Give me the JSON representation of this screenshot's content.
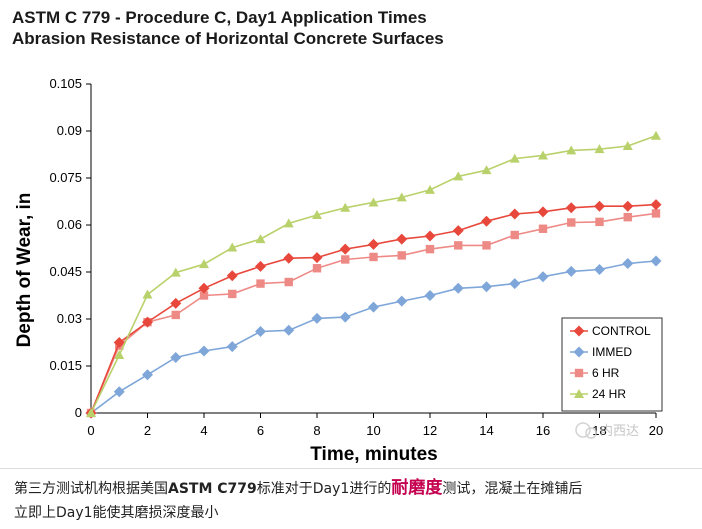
{
  "chart_data": {
    "type": "line",
    "title_lines": [
      "ASTM C 779 - Procedure C, Day1 Application Times",
      "Abrasion Resistance of Horizontal Concrete Surfaces"
    ],
    "xlabel": "Time, minutes",
    "ylabel": "Depth of Wear, in",
    "xlim": [
      0,
      20
    ],
    "ylim": [
      0,
      0.105
    ],
    "xticks": [
      0,
      2,
      4,
      6,
      8,
      10,
      12,
      14,
      16,
      18,
      20
    ],
    "xtick_labels": [
      "0",
      "2",
      "4",
      "6",
      "8",
      "10",
      "12",
      "14",
      "16",
      "18",
      "20"
    ],
    "yticks": [
      0,
      0.015,
      0.03,
      0.045,
      0.06,
      0.075,
      0.09,
      0.105
    ],
    "ytick_labels": [
      "0",
      "0.015",
      "0.03",
      "0.045",
      "0.06",
      "0.075",
      "0.09",
      "0.105"
    ],
    "x": [
      0,
      1,
      2,
      3,
      4,
      5,
      6,
      7,
      8,
      9,
      10,
      11,
      12,
      13,
      14,
      15,
      16,
      17,
      18,
      19,
      20
    ],
    "series": [
      {
        "name": "CONTROL",
        "color": "#e8483c",
        "marker": "diamond",
        "values": [
          0,
          0.0225,
          0.029,
          0.035,
          0.0398,
          0.0438,
          0.0468,
          0.0494,
          0.0496,
          0.0523,
          0.0538,
          0.0555,
          0.0565,
          0.0582,
          0.0612,
          0.0635,
          0.0642,
          0.0655,
          0.066,
          0.066,
          0.0665
        ]
      },
      {
        "name": "IMMED",
        "color": "#7ea6d9",
        "marker": "diamond",
        "values": [
          0,
          0.0068,
          0.0122,
          0.0177,
          0.0198,
          0.0212,
          0.026,
          0.0264,
          0.0302,
          0.0306,
          0.0338,
          0.0357,
          0.0375,
          0.0398,
          0.0403,
          0.0413,
          0.0435,
          0.0452,
          0.0458,
          0.0477,
          0.0485
        ]
      },
      {
        "name": "6 HR",
        "color": "#ee8a86",
        "marker": "square",
        "values": [
          0,
          0.0215,
          0.029,
          0.0313,
          0.0375,
          0.038,
          0.0413,
          0.0418,
          0.0462,
          0.049,
          0.0498,
          0.0503,
          0.0523,
          0.0535,
          0.0535,
          0.0568,
          0.0588,
          0.0608,
          0.061,
          0.0625,
          0.0637
        ]
      },
      {
        "name": "24 HR",
        "color": "#b9d16a",
        "marker": "triangle",
        "values": [
          0,
          0.0185,
          0.0378,
          0.0448,
          0.0475,
          0.0528,
          0.0555,
          0.0605,
          0.0632,
          0.0655,
          0.0672,
          0.0688,
          0.0712,
          0.0755,
          0.0775,
          0.0812,
          0.0822,
          0.0838,
          0.0842,
          0.0852,
          0.0885
        ]
      }
    ],
    "legend_position": "bottom-right",
    "grid": false
  },
  "watermark": {
    "text": "内西达"
  },
  "caption": {
    "line1_prefix": "第三方测试机构根据美国",
    "line1_standard": "ASTM C779",
    "line1_mid": "标准对于Day1进行的",
    "line1_highlight": "耐磨度",
    "line1_suffix": "测试，混凝土在摊铺后",
    "line2": "立即上Day1能使其磨损深度最小"
  }
}
